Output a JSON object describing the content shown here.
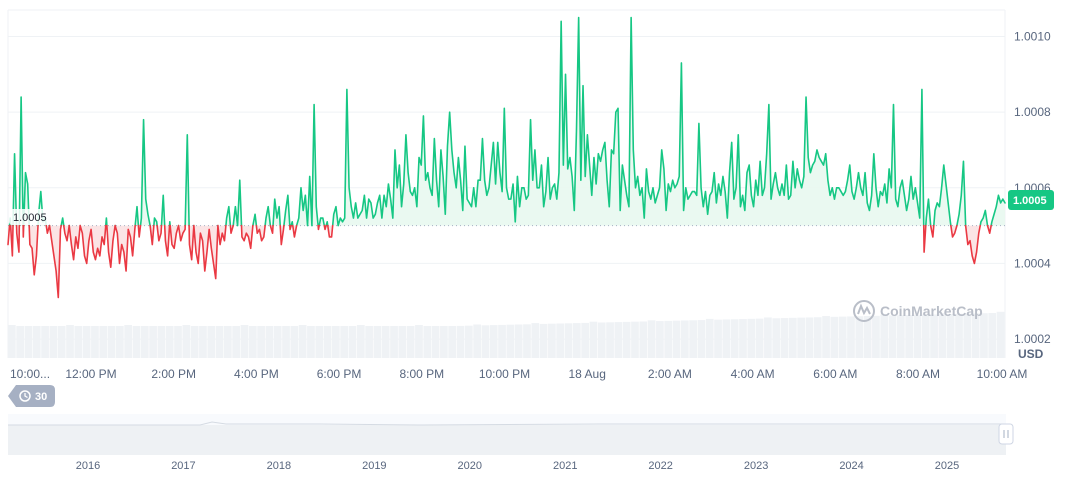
{
  "currency_unit": "USD",
  "current_price_label": "1.0005",
  "baseline_label": "1.0005",
  "watermark": "CoinMarketCap",
  "interval_badge": {
    "icon": "history-icon",
    "label": "30"
  },
  "y_ticks": [
    "1.0002",
    "1.0004",
    "1.0006",
    "1.0008",
    "1.0010"
  ],
  "x_ticks": [
    "10:00...",
    "12:00 PM",
    "2:00 PM",
    "4:00 PM",
    "6:00 PM",
    "8:00 PM",
    "10:00 PM",
    "18 Aug",
    "2:00 AM",
    "4:00 AM",
    "6:00 AM",
    "8:00 AM",
    "10:00 AM"
  ],
  "navigator_years": [
    "2016",
    "2017",
    "2018",
    "2019",
    "2020",
    "2021",
    "2022",
    "2023",
    "2024",
    "2025"
  ],
  "colors": {
    "up": "#16c784",
    "down": "#ea3943",
    "up_fill": "#e8f8f0",
    "down_fill": "#fbe3e4",
    "grid": "#eff2f5",
    "volume": "#eff2f5"
  },
  "chart_data": {
    "type": "area",
    "title": "",
    "xlabel": "",
    "ylabel": "USD",
    "ylim": [
      1.00015,
      1.00107
    ],
    "baseline": 1.0005,
    "current": 1.0005,
    "grid": true,
    "x_range": [
      "10:00 AM",
      "10:00 AM (next day)"
    ],
    "series": [
      {
        "values": [
          1.00045,
          1.00052,
          1.00042,
          1.00069,
          1.00048,
          1.00043,
          1.00084,
          1.00047,
          1.00064,
          1.00061,
          1.00045,
          1.00044,
          1.00037,
          1.00042,
          1.00053,
          1.00059,
          1.00051,
          1.00052,
          1.00048,
          1.0005,
          1.00046,
          1.00042,
          1.00038,
          1.00031,
          1.00049,
          1.00052,
          1.00048,
          1.00046,
          1.0005,
          1.00045,
          1.00041,
          1.00047,
          1.00044,
          1.0005,
          1.00048,
          1.00042,
          1.0004,
          1.00046,
          1.00049,
          1.00043,
          1.00041,
          1.00044,
          1.00042,
          1.00047,
          1.00045,
          1.00052,
          1.00043,
          1.00039,
          1.00046,
          1.0005,
          1.00048,
          1.0004,
          1.00045,
          1.00043,
          1.00038,
          1.00049,
          1.00047,
          1.00042,
          1.00049,
          1.00055,
          1.00047,
          1.00052,
          1.00078,
          1.00057,
          1.00053,
          1.0005,
          1.00045,
          1.00052,
          1.00051,
          1.00046,
          1.00048,
          1.00058,
          1.00046,
          1.00042,
          1.00051,
          1.00045,
          1.00044,
          1.00048,
          1.0005,
          1.00046,
          1.00048,
          1.00049,
          1.00074,
          1.00045,
          1.00041,
          1.0005,
          1.00043,
          1.0004,
          1.00048,
          1.00046,
          1.00038,
          1.00043,
          1.00049,
          1.00044,
          1.0004,
          1.00036,
          1.0005,
          1.00045,
          1.00048,
          1.00046,
          1.00052,
          1.00055,
          1.00048,
          1.0005,
          1.00055,
          1.0005,
          1.00062,
          1.00047,
          1.00046,
          1.00048,
          1.00047,
          1.00044,
          1.0005,
          1.00053,
          1.00048,
          1.00049,
          1.00046,
          1.00047,
          1.00052,
          1.00055,
          1.0005,
          1.00048,
          1.00057,
          1.00052,
          1.00055,
          1.00045,
          1.00049,
          1.00054,
          1.00058,
          1.00049,
          1.00051,
          1.00047,
          1.0005,
          1.00052,
          1.0006,
          1.00054,
          1.00058,
          1.0005,
          1.00063,
          1.0005,
          1.00082,
          1.00055,
          1.00049,
          1.00052,
          1.00052,
          1.00049,
          1.00051,
          1.00047,
          1.00047,
          1.00053,
          1.00055,
          1.0005,
          1.00052,
          1.00051,
          1.00052,
          1.00086,
          1.0006,
          1.00055,
          1.00052,
          1.00056,
          1.00052,
          1.00053,
          1.00054,
          1.00058,
          1.00052,
          1.00057,
          1.00056,
          1.00052,
          1.00053,
          1.00056,
          1.00058,
          1.00052,
          1.00058,
          1.00055,
          1.00061,
          1.00057,
          1.00052,
          1.0007,
          1.0006,
          1.00066,
          1.00055,
          1.00061,
          1.00074,
          1.00064,
          1.00059,
          1.00058,
          1.0006,
          1.00055,
          1.00068,
          1.00066,
          1.00079,
          1.00062,
          1.00064,
          1.0006,
          1.00058,
          1.00073,
          1.00062,
          1.00055,
          1.0007,
          1.00063,
          1.00053,
          1.00071,
          1.0008,
          1.0007,
          1.00064,
          1.0006,
          1.00068,
          1.00062,
          1.00054,
          1.00071,
          1.00057,
          1.00056,
          1.00055,
          1.0006,
          1.00055,
          1.00062,
          1.00062,
          1.00073,
          1.00062,
          1.00058,
          1.0006,
          1.00066,
          1.00072,
          1.00061,
          1.00072,
          1.00064,
          1.00059,
          1.00081,
          1.0006,
          1.00057,
          1.00057,
          1.00061,
          1.00051,
          1.00063,
          1.00055,
          1.0006,
          1.0006,
          1.00057,
          1.00058,
          1.00078,
          1.00062,
          1.0007,
          1.0006,
          1.0006,
          1.00066,
          1.00055,
          1.00059,
          1.00068,
          1.00057,
          1.0006,
          1.00061,
          1.00057,
          1.00064,
          1.00104,
          1.00066,
          1.0009,
          1.00065,
          1.00068,
          1.00063,
          1.00054,
          1.00075,
          1.00105,
          1.00062,
          1.00087,
          1.00063,
          1.00074,
          1.00066,
          1.00058,
          1.00068,
          1.00061,
          1.00069,
          1.00067,
          1.0007,
          1.00072,
          1.00062,
          1.00055,
          1.0007,
          1.00069,
          1.0008,
          1.00081,
          1.00054,
          1.00066,
          1.00062,
          1.00058,
          1.00055,
          1.00105,
          1.0007,
          1.0006,
          1.00063,
          1.00058,
          1.0006,
          1.00052,
          1.00065,
          1.00059,
          1.00057,
          1.0006,
          1.00056,
          1.00058,
          1.0006,
          1.0007,
          1.00065,
          1.00054,
          1.00061,
          1.00059,
          1.00062,
          1.0006,
          1.00061,
          1.00063,
          1.00093,
          1.00054,
          1.0006,
          1.00057,
          1.00058,
          1.00059,
          1.00059,
          1.00058,
          1.00077,
          1.0006,
          1.00055,
          1.00059,
          1.00053,
          1.00058,
          1.00059,
          1.00064,
          1.00056,
          1.00061,
          1.00058,
          1.00063,
          1.00059,
          1.00052,
          1.00064,
          1.00072,
          1.00057,
          1.0006,
          1.00074,
          1.00055,
          1.00058,
          1.00054,
          1.00064,
          1.00066,
          1.00058,
          1.00055,
          1.00062,
          1.00058,
          1.00067,
          1.00058,
          1.0006,
          1.00069,
          1.00082,
          1.00057,
          1.00061,
          1.00064,
          1.0006,
          1.00058,
          1.00061,
          1.00058,
          1.00066,
          1.00057,
          1.00058,
          1.00067,
          1.0006,
          1.00065,
          1.00062,
          1.0006,
          1.00063,
          1.00084,
          1.00068,
          1.00064,
          1.00066,
          1.00067,
          1.0007,
          1.00068,
          1.00067,
          1.00066,
          1.00069,
          1.00062,
          1.00058,
          1.0006,
          1.00057,
          1.0006,
          1.0006,
          1.00059,
          1.00058,
          1.00059,
          1.00062,
          1.00066,
          1.00059,
          1.00057,
          1.0006,
          1.00064,
          1.0006,
          1.00058,
          1.00064,
          1.00056,
          1.00054,
          1.00058,
          1.00069,
          1.0006,
          1.00055,
          1.00059,
          1.00058,
          1.00061,
          1.00056,
          1.00065,
          1.0006,
          1.00082,
          1.00057,
          1.00055,
          1.0006,
          1.00062,
          1.00058,
          1.00054,
          1.00057,
          1.00063,
          1.00057,
          1.0006,
          1.00056,
          1.00052,
          1.00086,
          1.00043,
          1.00052,
          1.00057,
          1.0005,
          1.00047,
          1.00054,
          1.00056,
          1.00055,
          1.0006,
          1.00066,
          1.00061,
          1.00056,
          1.00051,
          1.00047,
          1.00048,
          1.0005,
          1.00053,
          1.00058,
          1.00067,
          1.0005,
          1.00045,
          1.00046,
          1.00042,
          1.0004,
          1.00043,
          1.00048,
          1.00051,
          1.00052,
          1.00054,
          1.0005,
          1.00048,
          1.00051,
          1.00053,
          1.00055,
          1.00058,
          1.00056,
          1.00057,
          1.00056
        ]
      }
    ]
  }
}
